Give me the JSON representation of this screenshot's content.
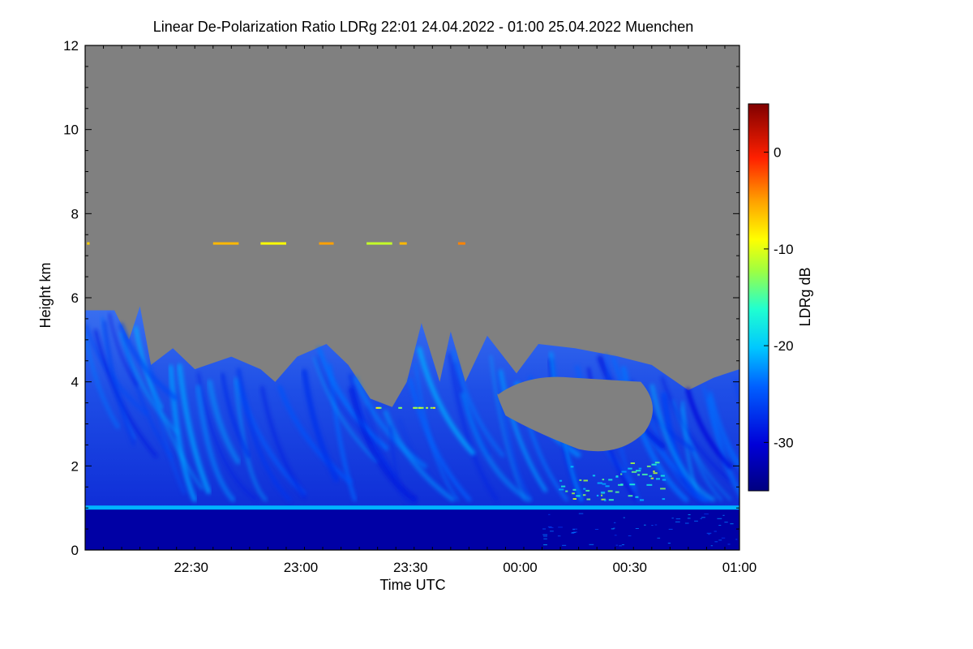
{
  "chart_data": {
    "type": "heatmap",
    "title": "Linear De-Polarization Ratio LDRg   22:01 24.04.2022 - 01:00 25.04.2022 Muenchen",
    "xlabel": "Time UTC",
    "ylabel": "Height km",
    "x_range_utc": [
      "22:01",
      "01:00"
    ],
    "x_ticks": [
      {
        "label": "22:30",
        "minutes_after_start": 29
      },
      {
        "label": "23:00",
        "minutes_after_start": 59
      },
      {
        "label": "23:30",
        "minutes_after_start": 89
      },
      {
        "label": "00:00",
        "minutes_after_start": 119
      },
      {
        "label": "00:30",
        "minutes_after_start": 149
      },
      {
        "label": "01:00",
        "minutes_after_start": 179
      }
    ],
    "y_ticks": [
      {
        "label": "0",
        "value": 0
      },
      {
        "label": "2",
        "value": 2
      },
      {
        "label": "4",
        "value": 4
      },
      {
        "label": "6",
        "value": 6
      },
      {
        "label": "8",
        "value": 8
      },
      {
        "label": "10",
        "value": 10
      },
      {
        "label": "12",
        "value": 12
      }
    ],
    "ylim": [
      0,
      12
    ],
    "duration_minutes": 179,
    "colorbar": {
      "label": "LDRg dB",
      "range": [
        -35,
        5
      ],
      "ticks": [
        {
          "label": "0",
          "value": 0
        },
        {
          "label": "-10",
          "value": -10
        },
        {
          "label": "-20",
          "value": -20
        },
        {
          "label": "-30",
          "value": -30
        }
      ]
    },
    "no_data_color": "#808080",
    "features": {
      "boundary_layer_line_km": 1.0,
      "cloud_top_profile_km": [
        {
          "t": 0,
          "h": 5.7
        },
        {
          "t": 8,
          "h": 5.7
        },
        {
          "t": 12,
          "h": 5.0
        },
        {
          "t": 15,
          "h": 5.8
        },
        {
          "t": 18,
          "h": 4.4
        },
        {
          "t": 24,
          "h": 4.8
        },
        {
          "t": 30,
          "h": 4.3
        },
        {
          "t": 40,
          "h": 4.6
        },
        {
          "t": 48,
          "h": 4.3
        },
        {
          "t": 52,
          "h": 4.0
        },
        {
          "t": 58,
          "h": 4.6
        },
        {
          "t": 66,
          "h": 4.9
        },
        {
          "t": 72,
          "h": 4.4
        },
        {
          "t": 78,
          "h": 3.6
        },
        {
          "t": 84,
          "h": 3.4
        },
        {
          "t": 88,
          "h": 4.0
        },
        {
          "t": 92,
          "h": 5.4
        },
        {
          "t": 97,
          "h": 4.0
        },
        {
          "t": 100,
          "h": 5.2
        },
        {
          "t": 104,
          "h": 4.0
        },
        {
          "t": 110,
          "h": 5.1
        },
        {
          "t": 118,
          "h": 4.2
        },
        {
          "t": 124,
          "h": 4.9
        },
        {
          "t": 134,
          "h": 4.8
        },
        {
          "t": 146,
          "h": 4.6
        },
        {
          "t": 155,
          "h": 4.4
        },
        {
          "t": 165,
          "h": 3.8
        },
        {
          "t": 172,
          "h": 4.1
        },
        {
          "t": 179,
          "h": 4.3
        }
      ],
      "clear_pocket": {
        "t_start": 113,
        "t_end": 158,
        "h_bottom": 2.2,
        "h_top": 4.1
      },
      "aerosol_layer_km": 7.3
    }
  }
}
